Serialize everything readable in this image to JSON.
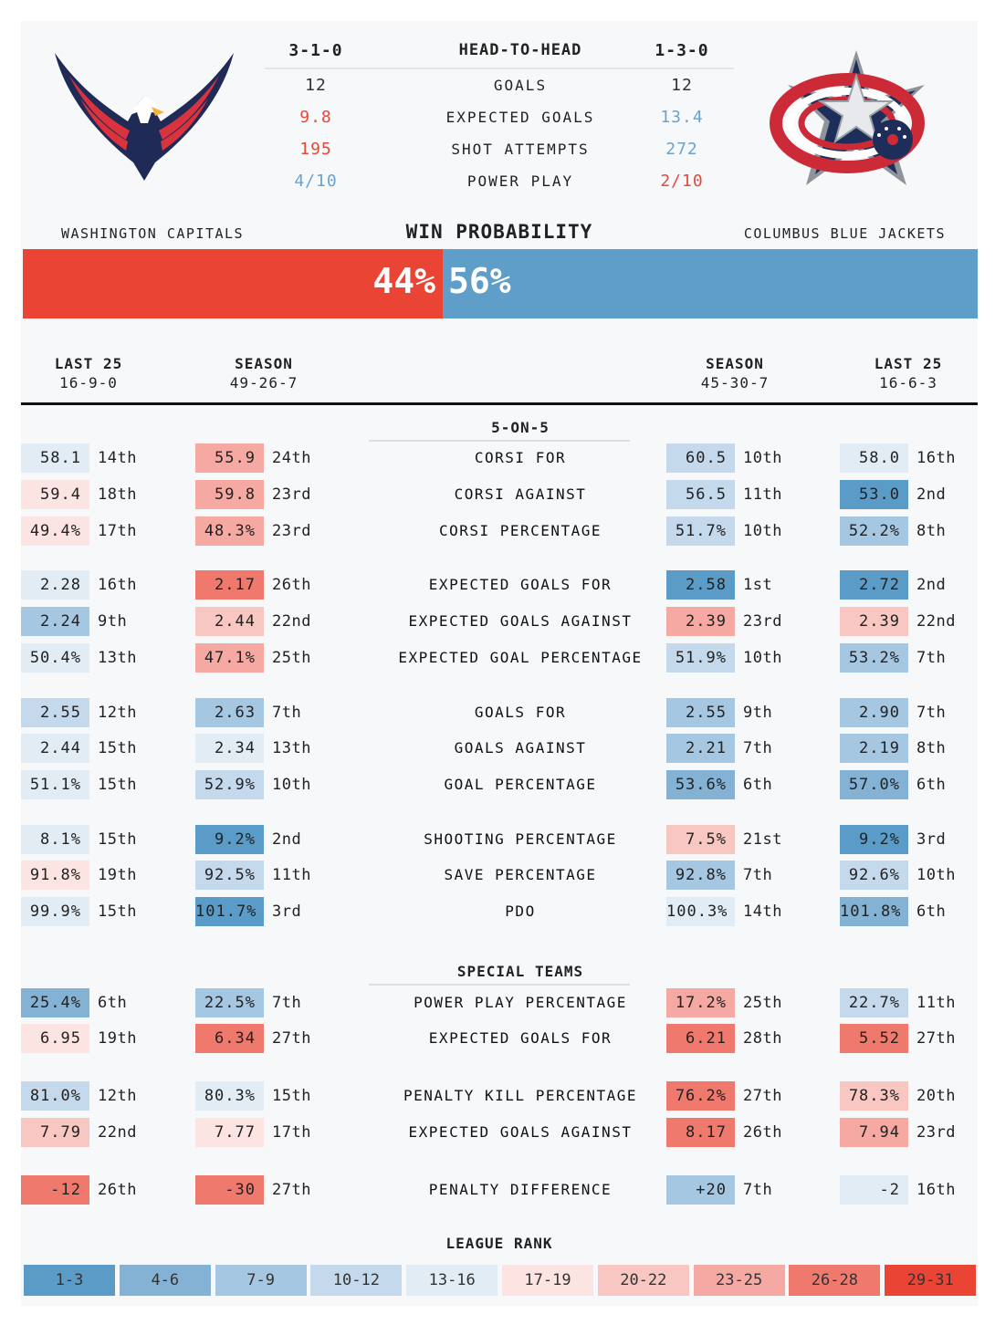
{
  "colors": {
    "r1": "#5b9bc7",
    "r2": "#84b2d5",
    "r3": "#a6c7e2",
    "r4": "#c4d9ec",
    "r5": "#e2ecf5",
    "r6": "#fbe4e2",
    "r7": "#f8c7c2",
    "r8": "#f5a9a2",
    "r9": "#f0796e",
    "r10": "#ea4434"
  },
  "head_to_head": {
    "left_record": "3-1-0",
    "title": "HEAD-TO-HEAD",
    "right_record": "1-3-0",
    "rows": [
      {
        "label": "GOALS",
        "left": "12",
        "right": "12",
        "left_color": "#333333",
        "right_color": "#333333"
      },
      {
        "label": "EXPECTED GOALS",
        "left": "9.8",
        "right": "13.4",
        "left_color": "#e8483a",
        "right_color": "#6aa3cd"
      },
      {
        "label": "SHOT ATTEMPTS",
        "left": "195",
        "right": "272",
        "left_color": "#e8483a",
        "right_color": "#6aa3cd"
      },
      {
        "label": "POWER PLAY",
        "left": "4/10",
        "right": "2/10",
        "left_color": "#6aa3cd",
        "right_color": "#e8483a"
      }
    ]
  },
  "teams": {
    "left": "WASHINGTON CAPITALS",
    "right": "COLUMBUS BLUE JACKETS"
  },
  "win_prob": {
    "title": "WIN PROBABILITY",
    "left": "44%",
    "right": "56%",
    "left_value": 44,
    "right_value": 56,
    "left_color": "#ea4434",
    "right_color": "#5e9ec9"
  },
  "columns": [
    {
      "title": "LAST 25",
      "record": "16-9-0"
    },
    {
      "title": "SEASON",
      "record": "49-26-7"
    },
    {
      "title": "SEASON",
      "record": "45-30-7"
    },
    {
      "title": "LAST 25",
      "record": "16-6-3"
    }
  ],
  "sections": {
    "five": "5-ON-5",
    "special": "SPECIAL TEAMS"
  },
  "rows": [
    {
      "label": "CORSI FOR",
      "cells": [
        [
          "58.1",
          "14th",
          5
        ],
        [
          "55.9",
          "24th",
          8
        ],
        [
          "60.5",
          "10th",
          4
        ],
        [
          "58.0",
          "16th",
          5
        ]
      ]
    },
    {
      "label": "CORSI AGAINST",
      "cells": [
        [
          "59.4",
          "18th",
          6
        ],
        [
          "59.8",
          "23rd",
          8
        ],
        [
          "56.5",
          "11th",
          4
        ],
        [
          "53.0",
          "2nd",
          1
        ]
      ]
    },
    {
      "label": "CORSI PERCENTAGE",
      "cells": [
        [
          "49.4%",
          "17th",
          6
        ],
        [
          "48.3%",
          "23rd",
          8
        ],
        [
          "51.7%",
          "10th",
          4
        ],
        [
          "52.2%",
          "8th",
          3
        ]
      ]
    },
    {
      "label": "EXPECTED GOALS FOR",
      "cells": [
        [
          "2.28",
          "16th",
          5
        ],
        [
          "2.17",
          "26th",
          9
        ],
        [
          "2.58",
          "1st",
          1
        ],
        [
          "2.72",
          "2nd",
          1
        ]
      ]
    },
    {
      "label": "EXPECTED GOALS AGAINST",
      "cells": [
        [
          "2.24",
          "9th",
          3
        ],
        [
          "2.44",
          "22nd",
          7
        ],
        [
          "2.39",
          "23rd",
          8
        ],
        [
          "2.39",
          "22nd",
          7
        ]
      ]
    },
    {
      "label": "EXPECTED GOAL PERCENTAGE",
      "cells": [
        [
          "50.4%",
          "13th",
          5
        ],
        [
          "47.1%",
          "25th",
          8
        ],
        [
          "51.9%",
          "10th",
          4
        ],
        [
          "53.2%",
          "7th",
          3
        ]
      ]
    },
    {
      "label": "GOALS FOR",
      "cells": [
        [
          "2.55",
          "12th",
          4
        ],
        [
          "2.63",
          "7th",
          3
        ],
        [
          "2.55",
          "9th",
          3
        ],
        [
          "2.90",
          "7th",
          3
        ]
      ]
    },
    {
      "label": "GOALS AGAINST",
      "cells": [
        [
          "2.44",
          "15th",
          5
        ],
        [
          "2.34",
          "13th",
          5
        ],
        [
          "2.21",
          "7th",
          3
        ],
        [
          "2.19",
          "8th",
          3
        ]
      ]
    },
    {
      "label": "GOAL PERCENTAGE",
      "cells": [
        [
          "51.1%",
          "15th",
          5
        ],
        [
          "52.9%",
          "10th",
          4
        ],
        [
          "53.6%",
          "6th",
          2
        ],
        [
          "57.0%",
          "6th",
          2
        ]
      ]
    },
    {
      "label": "SHOOTING PERCENTAGE",
      "cells": [
        [
          "8.1%",
          "15th",
          5
        ],
        [
          "9.2%",
          "2nd",
          1
        ],
        [
          "7.5%",
          "21st",
          7
        ],
        [
          "9.2%",
          "3rd",
          1
        ]
      ]
    },
    {
      "label": "SAVE PERCENTAGE",
      "cells": [
        [
          "91.8%",
          "19th",
          6
        ],
        [
          "92.5%",
          "11th",
          4
        ],
        [
          "92.8%",
          "7th",
          3
        ],
        [
          "92.6%",
          "10th",
          4
        ]
      ]
    },
    {
      "label": "PDO",
      "cells": [
        [
          "99.9%",
          "15th",
          5
        ],
        [
          "101.7%",
          "3rd",
          1
        ],
        [
          "100.3%",
          "14th",
          5
        ],
        [
          "101.8%",
          "6th",
          2
        ]
      ]
    },
    {
      "label": "POWER PLAY PERCENTAGE",
      "cells": [
        [
          "25.4%",
          "6th",
          2
        ],
        [
          "22.5%",
          "7th",
          3
        ],
        [
          "17.2%",
          "25th",
          8
        ],
        [
          "22.7%",
          "11th",
          4
        ]
      ]
    },
    {
      "label": "EXPECTED GOALS FOR",
      "cells": [
        [
          "6.95",
          "19th",
          6
        ],
        [
          "6.34",
          "27th",
          9
        ],
        [
          "6.21",
          "28th",
          9
        ],
        [
          "5.52",
          "27th",
          9
        ]
      ]
    },
    {
      "label": "PENALTY KILL PERCENTAGE",
      "cells": [
        [
          "81.0%",
          "12th",
          4
        ],
        [
          "80.3%",
          "15th",
          5
        ],
        [
          "76.2%",
          "27th",
          9
        ],
        [
          "78.3%",
          "20th",
          7
        ]
      ]
    },
    {
      "label": "EXPECTED GOALS AGAINST",
      "cells": [
        [
          "7.79",
          "22nd",
          7
        ],
        [
          "7.77",
          "17th",
          6
        ],
        [
          "8.17",
          "26th",
          9
        ],
        [
          "7.94",
          "23rd",
          8
        ]
      ]
    },
    {
      "label": "PENALTY DIFFERENCE",
      "cells": [
        [
          "-12",
          "26th",
          9
        ],
        [
          "-30",
          "27th",
          9
        ],
        [
          "+20",
          "7th",
          3
        ],
        [
          "-2",
          "16th",
          5
        ]
      ]
    }
  ],
  "legend": {
    "title": "LEAGUE RANK",
    "items": [
      "1-3",
      "4-6",
      "7-9",
      "10-12",
      "13-16",
      "17-19",
      "20-22",
      "23-25",
      "26-28",
      "29-31"
    ]
  }
}
